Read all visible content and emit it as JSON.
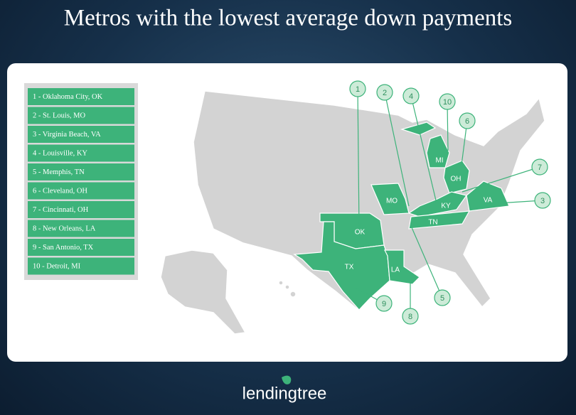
{
  "header": {
    "title": "Metros with the lowest average down payments"
  },
  "legend": {
    "items": [
      "1 - Oklahoma City, OK",
      "2 - St. Louis, MO",
      "3 - Virginia Beach, VA",
      "4 - Louisville, KY",
      "5 - Memphis, TN",
      "6 - Cleveland, OH",
      "7 - Cincinnati, OH",
      "8 - New Orleans, LA",
      "9 - San Antonio, TX",
      "10 - Detroit, MI"
    ]
  },
  "map": {
    "states": [
      "OK",
      "MO",
      "MI",
      "OH",
      "KY",
      "VA",
      "TN",
      "TX",
      "LA"
    ],
    "markers": [
      "1",
      "2",
      "4",
      "10",
      "6",
      "7",
      "3",
      "5",
      "8",
      "9"
    ]
  },
  "footer": {
    "logo": "lendingtree"
  }
}
